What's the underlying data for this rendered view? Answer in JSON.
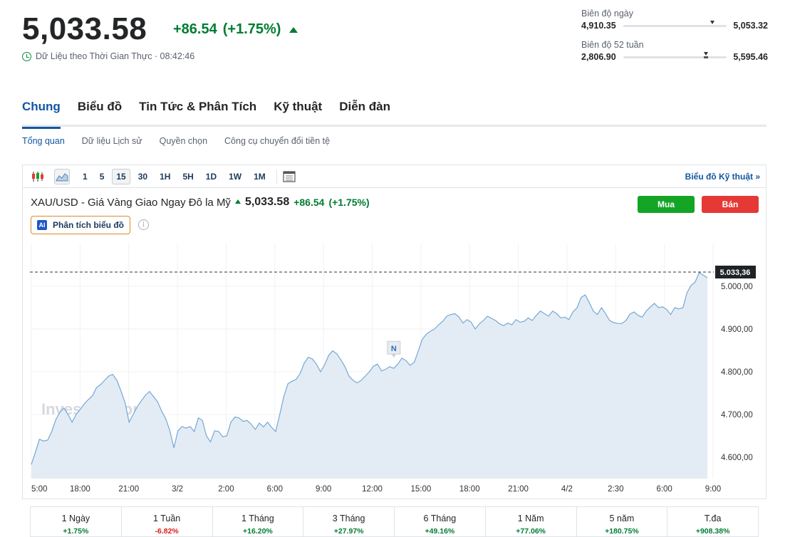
{
  "header": {
    "price": "5,033.58",
    "change": "+86.54",
    "change_pct": "(+1.75%)",
    "realtime_label": "Dữ Liệu theo Thời Gian Thực · 08:42:46"
  },
  "day_range": {
    "label": "Biên độ ngày",
    "low": "4,910.35",
    "high": "5,053.32",
    "position": 0.86
  },
  "week52_range": {
    "label": "Biên độ 52 tuần",
    "low": "2,806.90",
    "high": "5,595.46",
    "position": 0.8
  },
  "main_tabs": [
    "Chung",
    "Biểu đồ",
    "Tin Tức & Phân Tích",
    "Kỹ thuật",
    "Diễn đàn"
  ],
  "sub_tabs": [
    "Tổng quan",
    "Dữ liệu Lịch sử",
    "Quyền chọn",
    "Công cụ chuyển đổi tiền tệ"
  ],
  "toolbar": {
    "intervals": [
      "1",
      "5",
      "15",
      "30",
      "1H",
      "5H",
      "1D",
      "1W",
      "1M"
    ],
    "active_interval": "15",
    "tech_chart_link": "Biểu đồ Kỹ thuật »"
  },
  "instrument": {
    "name": "XAU/USD - Giá Vàng Giao Ngay Đô la Mỹ",
    "last": "5,033.58",
    "change": "+86.54",
    "change_pct": "(+1.75%)"
  },
  "buttons": {
    "buy": "Mua",
    "sell": "Bán",
    "ai_analysis": "Phân tích biểu đồ",
    "ai_badge": "AI"
  },
  "watermark": "Investing.com",
  "news_marker": "N",
  "chart_data": {
    "type": "area",
    "last_label": "5.033,36",
    "last_value": 5033.36,
    "ylim": [
      4550,
      5100
    ],
    "yticks": [
      {
        "value": 4600,
        "label": "4.600,00"
      },
      {
        "value": 4700,
        "label": "4.700,00"
      },
      {
        "value": 4800,
        "label": "4.800,00"
      },
      {
        "value": 4900,
        "label": "4.900,00"
      },
      {
        "value": 5000,
        "label": "5.000,00"
      }
    ],
    "xticks": [
      "5:00",
      "18:00",
      "21:00",
      "3/2",
      "2:00",
      "6:00",
      "9:00",
      "12:00",
      "15:00",
      "18:00",
      "21:00",
      "4/2",
      "2:30",
      "6:00",
      "9:00"
    ],
    "values": [
      4583,
      4612,
      4642,
      4638,
      4640,
      4660,
      4688,
      4705,
      4715,
      4700,
      4682,
      4700,
      4712,
      4725,
      4735,
      4744,
      4763,
      4770,
      4780,
      4790,
      4794,
      4780,
      4755,
      4728,
      4682,
      4700,
      4718,
      4732,
      4745,
      4754,
      4742,
      4730,
      4708,
      4690,
      4662,
      4622,
      4662,
      4672,
      4668,
      4672,
      4660,
      4692,
      4686,
      4650,
      4636,
      4662,
      4660,
      4648,
      4650,
      4682,
      4694,
      4692,
      4684,
      4686,
      4677,
      4665,
      4680,
      4671,
      4682,
      4670,
      4660,
      4700,
      4742,
      4772,
      4778,
      4782,
      4796,
      4820,
      4834,
      4830,
      4818,
      4800,
      4816,
      4838,
      4849,
      4842,
      4828,
      4812,
      4790,
      4780,
      4774,
      4780,
      4790,
      4800,
      4813,
      4818,
      4802,
      4806,
      4812,
      4808,
      4818,
      4832,
      4826,
      4815,
      4822,
      4848,
      4876,
      4888,
      4895,
      4900,
      4910,
      4918,
      4930,
      4934,
      4936,
      4928,
      4914,
      4922,
      4916,
      4900,
      4912,
      4920,
      4930,
      4925,
      4920,
      4912,
      4908,
      4914,
      4910,
      4922,
      4916,
      4918,
      4926,
      4920,
      4932,
      4942,
      4936,
      4930,
      4942,
      4936,
      4926,
      4928,
      4922,
      4940,
      4950,
      4974,
      4980,
      4962,
      4942,
      4934,
      4950,
      4936,
      4920,
      4915,
      4913,
      4913,
      4920,
      4935,
      4940,
      4932,
      4928,
      4942,
      4952,
      4960,
      4950,
      4952,
      4946,
      4934,
      4950,
      4947,
      4950,
      4985,
      5002,
      5010,
      5032,
      5026,
      5020
    ]
  },
  "periods": [
    {
      "label": "1 Ngày",
      "value": "+1.75%",
      "dir": "pos"
    },
    {
      "label": "1 Tuần",
      "value": "-6.82%",
      "dir": "neg"
    },
    {
      "label": "1 Tháng",
      "value": "+16.20%",
      "dir": "pos"
    },
    {
      "label": "3 Tháng",
      "value": "+27.97%",
      "dir": "pos"
    },
    {
      "label": "6 Tháng",
      "value": "+49.16%",
      "dir": "pos"
    },
    {
      "label": "1 Năm",
      "value": "+77.06%",
      "dir": "pos"
    },
    {
      "label": "5 năm",
      "value": "+180.75%",
      "dir": "pos"
    },
    {
      "label": "T.đa",
      "value": "+908.38%",
      "dir": "pos"
    }
  ]
}
